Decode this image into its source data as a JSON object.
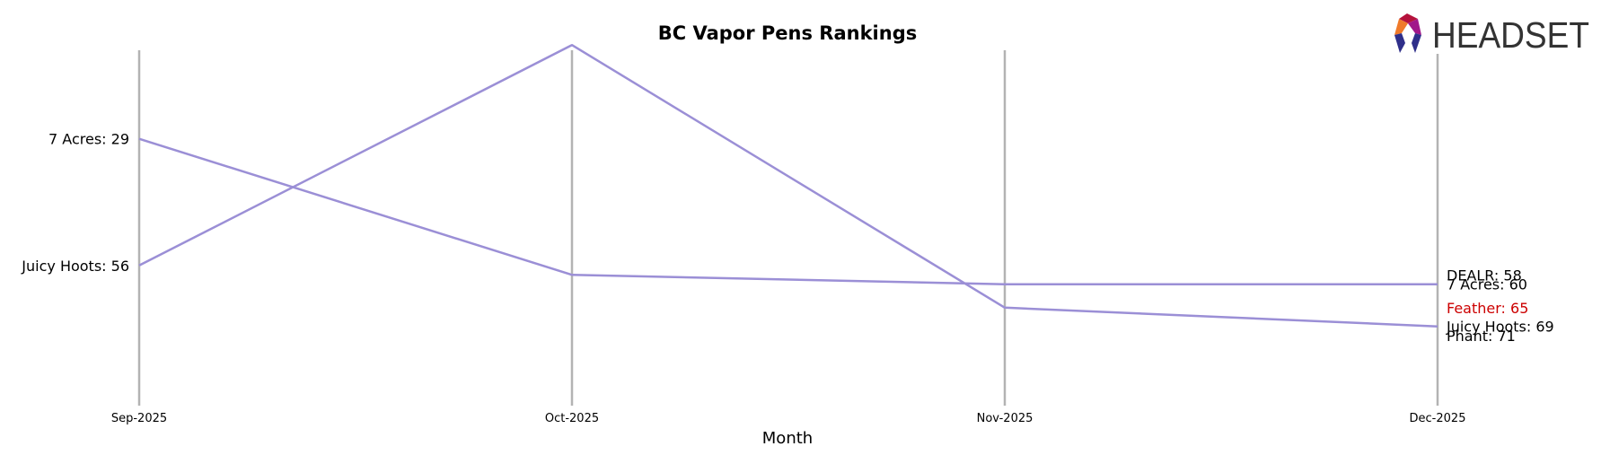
{
  "chart_data": {
    "type": "line",
    "title": "BC Vapor Pens Rankings",
    "xlabel": "Month",
    "ylabel": "",
    "categories": [
      "Sep-2025",
      "Oct-2025",
      "Nov-2025",
      "Dec-2025"
    ],
    "y_inverted": true,
    "ylim": [
      8,
      79
    ],
    "grid": false,
    "line_color": "#9b8fd6",
    "highlight_color": "#cc0000",
    "series": [
      {
        "name": "7 Acres",
        "values": [
          29,
          58,
          60,
          60
        ]
      },
      {
        "name": "Juicy Hoots",
        "values": [
          56,
          9,
          65,
          69
        ]
      }
    ],
    "left_labels": [
      {
        "text": "7 Acres: 29",
        "value": 29
      },
      {
        "text": "Juicy Hoots: 56",
        "value": 56
      }
    ],
    "right_labels": [
      {
        "text": "DEALR: 58",
        "value": 58,
        "highlight": false
      },
      {
        "text": "7 Acres: 60",
        "value": 60,
        "highlight": false
      },
      {
        "text": "Feather: 65",
        "value": 65,
        "highlight": true
      },
      {
        "text": "Juicy Hoots: 69",
        "value": 69,
        "highlight": false
      },
      {
        "text": "Phant: 71",
        "value": 71,
        "highlight": false
      }
    ]
  },
  "logo": {
    "text": "HEADSET",
    "icon": "headset-hexagon-icon"
  }
}
